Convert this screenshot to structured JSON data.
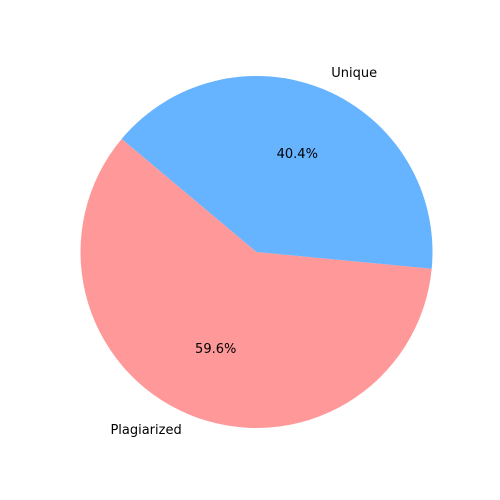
{
  "chart_data": {
    "type": "pie",
    "title": "",
    "start_angle_deg": 140,
    "direction": "counterclockwise",
    "slices": [
      {
        "label": "Plagiarized",
        "value": 59.6,
        "pct_label": "59.6%",
        "color": "#ff9999"
      },
      {
        "label": "Unique",
        "value": 40.4,
        "pct_label": "40.4%",
        "color": "#66b3ff"
      }
    ]
  }
}
